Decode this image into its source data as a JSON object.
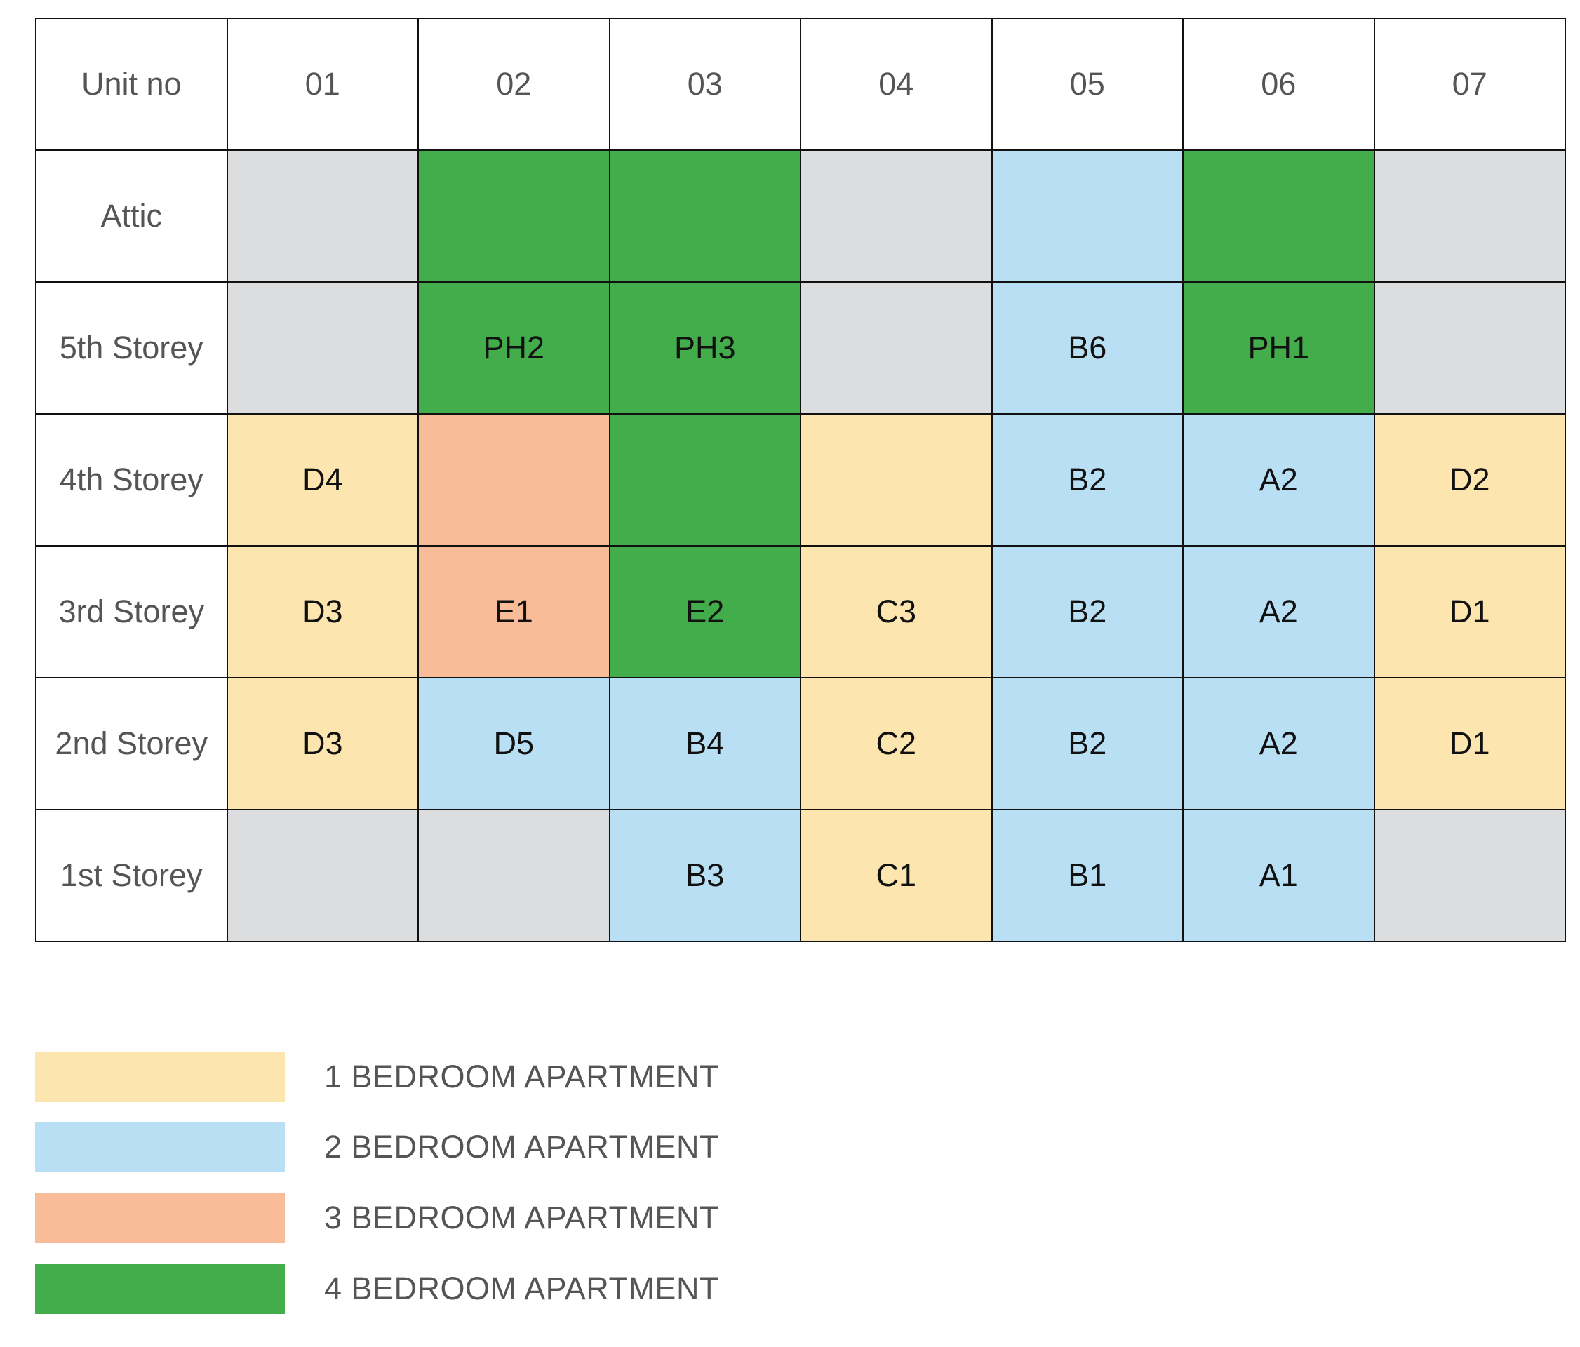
{
  "colors": {
    "empty": "#dcdddf",
    "one_bed": "#fde5b0",
    "two_bed": "#b8dff4",
    "three_bed": "#f9bc98",
    "four_bed": "#42ad4a"
  },
  "header": {
    "corner": "Unit no",
    "units": [
      "01",
      "02",
      "03",
      "04",
      "05",
      "06",
      "07"
    ]
  },
  "rows": [
    {
      "floor": "Attic",
      "cells": [
        {
          "label": "",
          "type": "empty"
        },
        {
          "label": "",
          "type": "four_bed"
        },
        {
          "label": "",
          "type": "four_bed"
        },
        {
          "label": "",
          "type": "empty"
        },
        {
          "label": "",
          "type": "two_bed"
        },
        {
          "label": "",
          "type": "four_bed"
        },
        {
          "label": "",
          "type": "empty"
        }
      ]
    },
    {
      "floor": "5th Storey",
      "cells": [
        {
          "label": "",
          "type": "empty"
        },
        {
          "label": "PH2",
          "type": "four_bed"
        },
        {
          "label": "PH3",
          "type": "four_bed"
        },
        {
          "label": "",
          "type": "empty"
        },
        {
          "label": "B6",
          "type": "two_bed"
        },
        {
          "label": "PH1",
          "type": "four_bed"
        },
        {
          "label": "",
          "type": "empty"
        }
      ]
    },
    {
      "floor": "4th Storey",
      "cells": [
        {
          "label": "D4",
          "type": "one_bed"
        },
        {
          "label": "",
          "type": "three_bed"
        },
        {
          "label": "",
          "type": "four_bed"
        },
        {
          "label": "",
          "type": "one_bed"
        },
        {
          "label": "B2",
          "type": "two_bed"
        },
        {
          "label": "A2",
          "type": "two_bed"
        },
        {
          "label": "D2",
          "type": "one_bed"
        }
      ]
    },
    {
      "floor": "3rd Storey",
      "cells": [
        {
          "label": "D3",
          "type": "one_bed"
        },
        {
          "label": "E1",
          "type": "three_bed"
        },
        {
          "label": "E2",
          "type": "four_bed"
        },
        {
          "label": "C3",
          "type": "one_bed"
        },
        {
          "label": "B2",
          "type": "two_bed"
        },
        {
          "label": "A2",
          "type": "two_bed"
        },
        {
          "label": "D1",
          "type": "one_bed"
        }
      ]
    },
    {
      "floor": "2nd Storey",
      "cells": [
        {
          "label": "D3",
          "type": "one_bed"
        },
        {
          "label": "D5",
          "type": "two_bed"
        },
        {
          "label": "B4",
          "type": "two_bed"
        },
        {
          "label": "C2",
          "type": "one_bed"
        },
        {
          "label": "B2",
          "type": "two_bed"
        },
        {
          "label": "A2",
          "type": "two_bed"
        },
        {
          "label": "D1",
          "type": "one_bed"
        }
      ]
    },
    {
      "floor": "1st Storey",
      "cells": [
        {
          "label": "",
          "type": "empty"
        },
        {
          "label": "",
          "type": "empty"
        },
        {
          "label": "B3",
          "type": "two_bed"
        },
        {
          "label": "C1",
          "type": "one_bed"
        },
        {
          "label": "B1",
          "type": "two_bed"
        },
        {
          "label": "A1",
          "type": "two_bed"
        },
        {
          "label": "",
          "type": "empty"
        }
      ]
    }
  ],
  "legend": [
    {
      "label": "1 BEDROOM APARTMENT",
      "type": "one_bed"
    },
    {
      "label": "2 BEDROOM APARTMENT",
      "type": "two_bed"
    },
    {
      "label": "3 BEDROOM APARTMENT",
      "type": "three_bed"
    },
    {
      "label": "4 BEDROOM APARTMENT",
      "type": "four_bed"
    }
  ]
}
